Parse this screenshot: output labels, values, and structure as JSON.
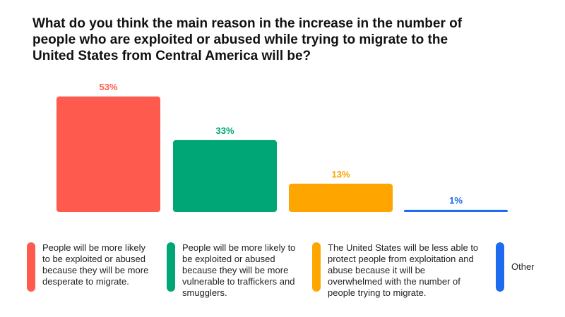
{
  "title": "What do you think the main reason in the increase in the number of people who are exploited or abused while trying to migrate to the United States from Central America will be?",
  "chart_data": {
    "type": "bar",
    "categories": [
      "People will be more likely to be exploited or abused because they will be more desperate to migrate.",
      "People will be more likely to be exploited or abused because they will be more vulnerable to traffickers and smugglers.",
      "The United States will be less able to protect people from exploitation and abuse because it will be overwhelmed with the number of people trying to migrate.",
      "Other"
    ],
    "values": [
      53,
      33,
      13,
      1
    ],
    "value_labels": [
      "53%",
      "33%",
      "13%",
      "1%"
    ],
    "colors": [
      "#FF5A4E",
      "#00A676",
      "#FFA500",
      "#1F6BEF"
    ],
    "ylim": [
      0,
      53
    ],
    "grid": false,
    "legend": "bottom"
  }
}
